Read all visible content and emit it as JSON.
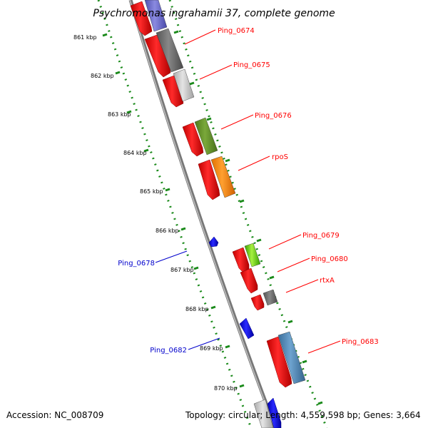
{
  "title": "Psychromonas ingrahamii 37, complete genome",
  "colors": {
    "cds": "#ff0000",
    "reverse_label": "#0000cc",
    "backbone": "#888888",
    "tick": "#1a8a1a"
  },
  "kbp_labels": [
    "861 kbp",
    "862 kbp",
    "863 kbp",
    "864 kbp",
    "865 kbp",
    "866 kbp",
    "867 kbp",
    "868 kbp",
    "869 kbp",
    "870 kbp"
  ],
  "forward_genes": [
    {
      "label": "Ping_0674",
      "color": "#ff0000"
    },
    {
      "label": "Ping_0675",
      "color": "#ff0000"
    },
    {
      "label": "Ping_0676",
      "color": "#ff0000"
    },
    {
      "label": "rpoS",
      "color": "#ff0000"
    },
    {
      "label": "Ping_0679",
      "color": "#ff0000"
    },
    {
      "label": "Ping_0680",
      "color": "#ff0000"
    },
    {
      "label": "rtxA",
      "color": "#ff0000"
    },
    {
      "label": "Ping_0683",
      "color": "#ff0000"
    }
  ],
  "reverse_genes": [
    {
      "label": "Ping_0678",
      "color": "#0000cc"
    },
    {
      "label": "Ping_0682",
      "color": "#0000cc"
    }
  ],
  "footer": {
    "accession": "Accession: NC_008709",
    "summary": "Topology: circular; Length: 4,559,598 bp; Genes: 3,664"
  }
}
